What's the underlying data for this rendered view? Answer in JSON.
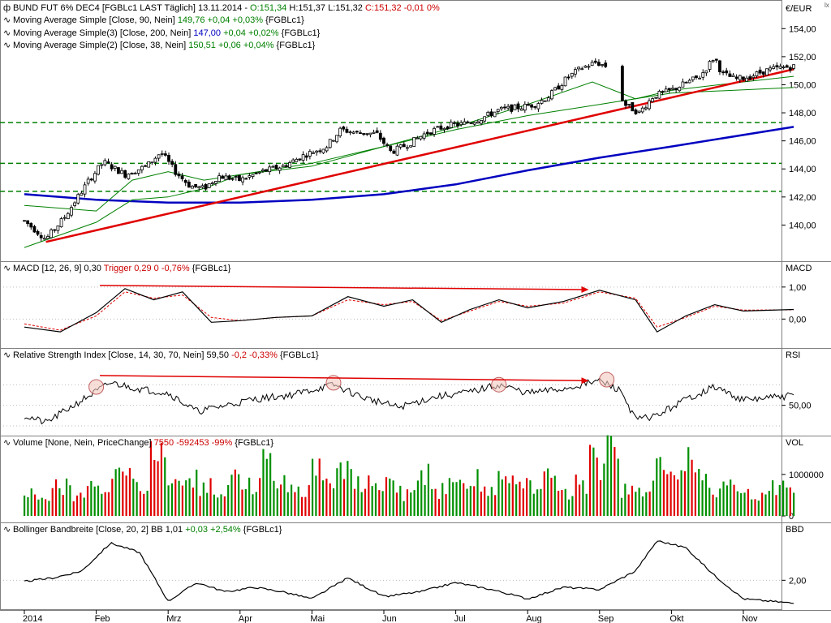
{
  "main": {
    "title": "BUND FUT 6% DEC4 [FGBLc1 LAST Täglich] 13.11.2014",
    "ohlc": {
      "o": "O:151,34",
      "h": "H:151,37",
      "l": "L:151,32",
      "c": "C:151,32",
      "chg": "-0,01 0%"
    },
    "ma90": {
      "label": "Moving Average Simple [Close, 90, Nein]",
      "value": "149,76",
      "chg": "+0,04 +0,03%",
      "sym": "{FGBLc1}"
    },
    "ma200": {
      "label": "Moving Average Simple(3) [Close, 200, Nein]",
      "value": "147,00",
      "chg": "+0,04 +0,02%",
      "sym": "{FGBLc1}"
    },
    "ma38": {
      "label": "Moving Average Simple(2) [Close, 38, Nein]",
      "value": "150,51",
      "chg": "+0,06 +0,04%",
      "sym": "{FGBLc1}"
    },
    "unit": "€/EUR",
    "yticks": [
      "154,00",
      "152,00",
      "150,00",
      "148,00",
      "146,00",
      "144,00",
      "142,00",
      "140,00"
    ]
  },
  "macd": {
    "label": "MACD [12, 26, 9] 0,30",
    "trigger": "Trigger 0,29 0 -0,76%",
    "sym": "{FGBLc1}",
    "axis": "MACD",
    "yticks": [
      "1,00",
      "0,00"
    ]
  },
  "rsi": {
    "label": "Relative Strength Index [Close, 14, 30, 70, Nein] 59,50",
    "chg": "-0,2 -0,33%",
    "sym": "{FGBLc1}",
    "axis": "RSI",
    "yticks": [
      "50,00"
    ]
  },
  "vol": {
    "label": "Volume [None, Nein, PriceChange]",
    "value": "7550 -592453 -99%",
    "sym": "{FGBLc1}",
    "axis": "VOL",
    "yticks": [
      "1000000",
      "0"
    ]
  },
  "bbd": {
    "label": "Bollinger Bandbreite [Close, 20, 2] BB 1,01",
    "chg": "+0,03 +2,54%",
    "sym": "{FGBLc1}",
    "axis": "BBD",
    "yticks": [
      "2,00"
    ]
  },
  "months": [
    "2014",
    "Feb",
    "Mrz",
    "Apr",
    "Mai",
    "Jun",
    "Jul",
    "Aug",
    "Sep",
    "Okt",
    "Nov"
  ],
  "chart_data": [
    {
      "type": "line",
      "title": "BUND FUT 6% DEC4 [FGBLc1 LAST Täglich] 13.11.2014",
      "ylabel": "€/EUR",
      "ylim": [
        138,
        155
      ],
      "x_labels": [
        "2014",
        "Feb",
        "Mrz",
        "Apr",
        "Mai",
        "Jun",
        "Jul",
        "Aug",
        "Sep",
        "Okt",
        "Nov"
      ],
      "price_path": [
        [
          0,
          140.3
        ],
        [
          0.3,
          139
        ],
        [
          0.55,
          140.5
        ],
        [
          0.9,
          143.2
        ],
        [
          1.1,
          144.5
        ],
        [
          1.4,
          143.6
        ],
        [
          1.7,
          144.2
        ],
        [
          1.9,
          145.2
        ],
        [
          2.1,
          143.8
        ],
        [
          2.3,
          142.8
        ],
        [
          2.5,
          142.6
        ],
        [
          2.7,
          143.5
        ],
        [
          3.0,
          143.2
        ],
        [
          3.3,
          143.8
        ],
        [
          3.6,
          144.2
        ],
        [
          3.9,
          145.0
        ],
        [
          4.2,
          145.6
        ],
        [
          4.4,
          146.8
        ],
        [
          4.6,
          146.6
        ],
        [
          4.9,
          146.5
        ],
        [
          5.1,
          145.2
        ],
        [
          5.35,
          145.8
        ],
        [
          5.6,
          146.6
        ],
        [
          5.9,
          147.1
        ],
        [
          6.1,
          147.2
        ],
        [
          6.35,
          147.6
        ],
        [
          6.6,
          148.2
        ],
        [
          6.9,
          148.4
        ],
        [
          7.1,
          148.6
        ],
        [
          7.3,
          149.2
        ],
        [
          7.55,
          150.5
        ],
        [
          7.75,
          151.2
        ],
        [
          7.95,
          151.6
        ],
        [
          8.1,
          151.3
        ],
        [
          8.35,
          148.6
        ],
        [
          8.55,
          148.0
        ],
        [
          8.75,
          149.2
        ],
        [
          9.0,
          149.6
        ],
        [
          9.15,
          150.0
        ],
        [
          9.4,
          150.6
        ],
        [
          9.6,
          152.0
        ],
        [
          9.7,
          150.8
        ],
        [
          9.9,
          150.4
        ],
        [
          10.1,
          150.6
        ],
        [
          10.3,
          151.0
        ],
        [
          10.5,
          151.2
        ],
        [
          10.7,
          151.3
        ]
      ],
      "series": [
        {
          "name": "Moving Average Simple [Close, 90, Nein]",
          "values": [
            [
              0,
              138.4
            ],
            [
              1,
              140.2
            ],
            [
              1.5,
              141.8
            ],
            [
              2,
              142.0
            ],
            [
              2.5,
              142.6
            ],
            [
              3,
              143.6
            ],
            [
              4,
              144.2
            ],
            [
              5,
              145.6
            ],
            [
              6,
              146.8
            ],
            [
              7,
              147.8
            ],
            [
              8,
              148.6
            ],
            [
              9,
              149.4
            ],
            [
              10.7,
              149.8
            ]
          ]
        },
        {
          "name": "Moving Average Simple(3) [Close, 200, Nein]",
          "values": [
            [
              0,
              142.2
            ],
            [
              1,
              141.8
            ],
            [
              2,
              141.6
            ],
            [
              3,
              141.6
            ],
            [
              4,
              141.8
            ],
            [
              5,
              142.2
            ],
            [
              6,
              142.9
            ],
            [
              7,
              143.9
            ],
            [
              8,
              144.8
            ],
            [
              9,
              145.6
            ],
            [
              10.7,
              147.0
            ]
          ]
        },
        {
          "name": "Moving Average Simple(2) [Close, 38, Nein]",
          "values": [
            [
              0,
              141.4
            ],
            [
              1,
              141.0
            ],
            [
              1.5,
              143.2
            ],
            [
              2,
              143.8
            ],
            [
              2.5,
              143.2
            ],
            [
              3,
              143.6
            ],
            [
              4,
              144.4
            ],
            [
              5,
              145.6
            ],
            [
              6,
              147.0
            ],
            [
              7,
              148.6
            ],
            [
              7.9,
              150.2
            ],
            [
              8.5,
              149.0
            ],
            [
              9,
              149.6
            ],
            [
              10,
              150.2
            ],
            [
              10.7,
              150.6
            ]
          ]
        }
      ],
      "annotations": {
        "horizontal_lines": [
          147.3,
          144.4,
          142.4
        ],
        "trendline": [
          [
            0.3,
            138.8
          ],
          [
            10.7,
            151.1
          ]
        ]
      }
    },
    {
      "type": "line",
      "title": "MACD [12, 26, 9]",
      "ylim": [
        -0.6,
        1.3
      ],
      "series": [
        {
          "name": "MACD",
          "values": [
            [
              0,
              -0.25
            ],
            [
              0.5,
              -0.4
            ],
            [
              1,
              0.2
            ],
            [
              1.4,
              0.95
            ],
            [
              1.8,
              0.6
            ],
            [
              2.2,
              0.85
            ],
            [
              2.6,
              -0.1
            ],
            [
              3,
              -0.05
            ],
            [
              3.5,
              0.05
            ],
            [
              4,
              0.1
            ],
            [
              4.5,
              0.7
            ],
            [
              5,
              0.4
            ],
            [
              5.4,
              0.6
            ],
            [
              5.8,
              -0.1
            ],
            [
              6.2,
              0.3
            ],
            [
              6.6,
              0.6
            ],
            [
              7,
              0.35
            ],
            [
              7.5,
              0.55
            ],
            [
              8,
              0.9
            ],
            [
              8.5,
              0.6
            ],
            [
              8.8,
              -0.4
            ],
            [
              9.2,
              0.1
            ],
            [
              9.6,
              0.45
            ],
            [
              10,
              0.25
            ],
            [
              10.7,
              0.3
            ]
          ]
        },
        {
          "name": "Trigger",
          "values": [
            [
              0,
              -0.15
            ],
            [
              0.5,
              -0.35
            ],
            [
              1,
              0.1
            ],
            [
              1.4,
              0.85
            ],
            [
              1.8,
              0.65
            ],
            [
              2.2,
              0.75
            ],
            [
              2.6,
              0.05
            ],
            [
              3,
              -0.05
            ],
            [
              3.5,
              0.05
            ],
            [
              4,
              0.1
            ],
            [
              4.5,
              0.6
            ],
            [
              5,
              0.45
            ],
            [
              5.4,
              0.55
            ],
            [
              5.8,
              -0.05
            ],
            [
              6.2,
              0.25
            ],
            [
              6.6,
              0.55
            ],
            [
              7,
              0.4
            ],
            [
              7.5,
              0.5
            ],
            [
              8,
              0.85
            ],
            [
              8.5,
              0.65
            ],
            [
              8.8,
              -0.25
            ],
            [
              9.2,
              0.05
            ],
            [
              9.6,
              0.4
            ],
            [
              10,
              0.28
            ],
            [
              10.7,
              0.29
            ]
          ]
        }
      ]
    },
    {
      "type": "line",
      "title": "Relative Strength Index [Close, 14, 30, 70, Nein]",
      "ylim": [
        30,
        90
      ],
      "series": [
        {
          "name": "RSI",
          "values": [
            [
              0,
              40
            ],
            [
              0.3,
              33
            ],
            [
              0.8,
              55
            ],
            [
              1.2,
              72
            ],
            [
              1.6,
              66
            ],
            [
              2.0,
              62
            ],
            [
              2.4,
              44
            ],
            [
              2.8,
              50
            ],
            [
              3.2,
              56
            ],
            [
              3.7,
              60
            ],
            [
              4.3,
              70
            ],
            [
              4.7,
              58
            ],
            [
              5.2,
              48
            ],
            [
              5.7,
              58
            ],
            [
              6.2,
              63
            ],
            [
              6.6,
              70
            ],
            [
              7.0,
              62
            ],
            [
              7.5,
              66
            ],
            [
              8.0,
              74
            ],
            [
              8.3,
              64
            ],
            [
              8.5,
              36
            ],
            [
              8.8,
              40
            ],
            [
              9.2,
              56
            ],
            [
              9.6,
              68
            ],
            [
              10.0,
              55
            ],
            [
              10.7,
              59.5
            ]
          ]
        }
      ],
      "annotations": {
        "circles_at_x": [
          1.0,
          4.3,
          6.6,
          8.1
        ]
      }
    },
    {
      "type": "bar",
      "title": "Volume [None, Nein, PriceChange]",
      "ylim": [
        0,
        1700000
      ],
      "values": [
        620000,
        600000,
        800000,
        520000,
        950000,
        1000000,
        1200000,
        800000,
        1600000,
        900000,
        1150000,
        850000,
        740000,
        1150000,
        920000,
        1450000,
        1000000,
        810000,
        1300000,
        1050000,
        1250000,
        1000000,
        860000,
        900000,
        600000,
        1100000,
        720000,
        860000,
        1160000,
        840000,
        1400000,
        1100000,
        920000,
        1050000,
        600000,
        900000,
        1500000,
        1700000,
        700000,
        600000,
        1300000,
        1000000,
        1700000,
        900000,
        790000,
        950000,
        620000,
        900000,
        850000,
        7550
      ],
      "colors_by_price_change": [
        "green",
        "red"
      ]
    },
    {
      "type": "line",
      "title": "Bollinger Bandbreite [Close, 20, 2]",
      "ylim": [
        1.0,
        4.0
      ],
      "series": [
        {
          "name": "BB",
          "values": [
            [
              0,
              1.95
            ],
            [
              0.4,
              2.1
            ],
            [
              0.8,
              2.4
            ],
            [
              1.2,
              3.6
            ],
            [
              1.6,
              3.2
            ],
            [
              2.0,
              1.1
            ],
            [
              2.4,
              1.9
            ],
            [
              2.8,
              1.5
            ],
            [
              3.2,
              1.7
            ],
            [
              3.6,
              1.5
            ],
            [
              4.0,
              1.2
            ],
            [
              4.5,
              2.1
            ],
            [
              5.0,
              1.3
            ],
            [
              5.5,
              1.5
            ],
            [
              6.0,
              1.9
            ],
            [
              6.5,
              1.6
            ],
            [
              7.0,
              1.2
            ],
            [
              7.5,
              1.7
            ],
            [
              8.0,
              1.6
            ],
            [
              8.5,
              2.4
            ],
            [
              8.8,
              3.7
            ],
            [
              9.2,
              3.4
            ],
            [
              9.6,
              2.2
            ],
            [
              10.0,
              1.2
            ],
            [
              10.7,
              1.01
            ]
          ]
        }
      ]
    }
  ],
  "colors": {
    "up": "#009000",
    "down": "#e00000",
    "ma90": "#008000",
    "ma200": "#0000c0",
    "ma38": "#008000",
    "trend": "#e00000",
    "hline": "#008000",
    "macd": "#000000",
    "trigger": "#e00000",
    "rsi": "#000000",
    "bbd": "#000000",
    "arrow": "#e00000"
  }
}
